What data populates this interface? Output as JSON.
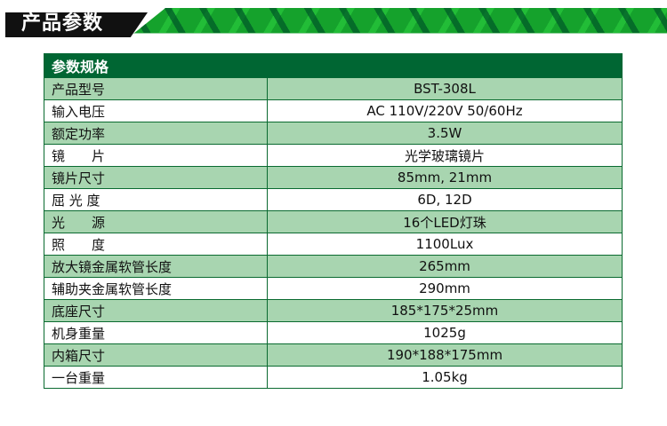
{
  "banner": {
    "title": "产品参数"
  },
  "table": {
    "header": "参数规格",
    "rows": [
      {
        "label": "产品型号",
        "value": "BST-308L"
      },
      {
        "label": "输入电压",
        "value": "AC 110V/220V 50/60Hz"
      },
      {
        "label": "额定功率",
        "value": "3.5W"
      },
      {
        "label": "镜　　片",
        "value": "光学玻璃镜片"
      },
      {
        "label": "镜片尺寸",
        "value": "85mm, 21mm"
      },
      {
        "label": "屈 光 度",
        "value": "6D, 12D"
      },
      {
        "label": "光　　源",
        "value": "16个LED灯珠"
      },
      {
        "label": "照　　度",
        "value": "1100Lux"
      },
      {
        "label": "放大镜金属软管长度",
        "value": "265mm"
      },
      {
        "label": "辅助夹金属软管长度",
        "value": "290mm"
      },
      {
        "label": "底座尺寸",
        "value": "185*175*25mm"
      },
      {
        "label": "机身重量",
        "value": "1025g"
      },
      {
        "label": "内箱尺寸",
        "value": "190*188*175mm"
      },
      {
        "label": "一台重量",
        "value": "1.05kg"
      }
    ]
  },
  "colors": {
    "header": "#006633",
    "row_alt": "#a8d5b0",
    "border": "#0a6a30",
    "banner_black": "#111111",
    "banner_green": "#15a22c"
  }
}
